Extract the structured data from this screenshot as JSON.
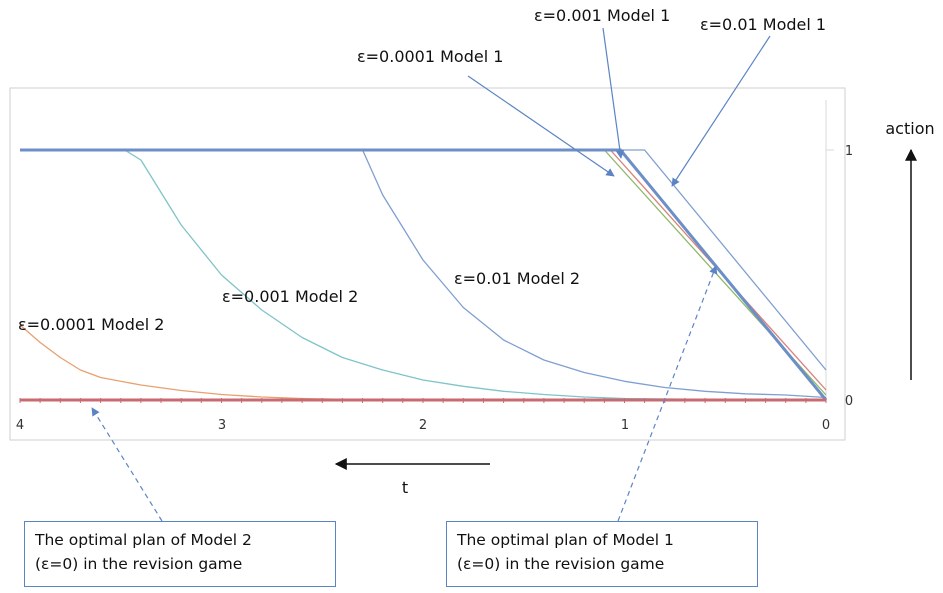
{
  "chart_data": {
    "type": "line",
    "x_axis": {
      "label": "t",
      "ticks": [
        "4",
        "3",
        "2",
        "1",
        "0"
      ],
      "range": [
        0,
        4
      ],
      "reversed": true
    },
    "y_axis": {
      "label": "action",
      "ticks": [
        "0",
        "1"
      ],
      "range": [
        0,
        1
      ]
    },
    "grid": false,
    "series": [
      {
        "name": "ε=0.0001 Model 1",
        "color": "#8fb86a",
        "points": [
          [
            4,
            1
          ],
          [
            1.1,
            1
          ],
          [
            0,
            0.02
          ]
        ]
      },
      {
        "name": "ε=0.001 Model 1",
        "color": "#d9827a",
        "points": [
          [
            4,
            1
          ],
          [
            1.07,
            1
          ],
          [
            0,
            0.04
          ]
        ]
      },
      {
        "name": "ε=0.01 Model 1",
        "color": "#7f9fd1",
        "points": [
          [
            4,
            1
          ],
          [
            0.9,
            1
          ],
          [
            0,
            0.12
          ]
        ]
      },
      {
        "name": "ε=0.01 Model 2",
        "color": "#7f9fd1",
        "points": [
          [
            4,
            1
          ],
          [
            2.3,
            1
          ],
          [
            2.2,
            0.82
          ],
          [
            2.0,
            0.56
          ],
          [
            1.8,
            0.37
          ],
          [
            1.6,
            0.24
          ],
          [
            1.4,
            0.16
          ],
          [
            1.2,
            0.11
          ],
          [
            1.0,
            0.075
          ],
          [
            0.8,
            0.05
          ],
          [
            0.6,
            0.035
          ],
          [
            0.4,
            0.025
          ],
          [
            0.2,
            0.02
          ],
          [
            0,
            0.01
          ]
        ]
      },
      {
        "name": "ε=0.001 Model 2",
        "color": "#7fc4c8",
        "points": [
          [
            4,
            1
          ],
          [
            3.48,
            1
          ],
          [
            3.4,
            0.96
          ],
          [
            3.2,
            0.7
          ],
          [
            3.0,
            0.5
          ],
          [
            2.8,
            0.36
          ],
          [
            2.6,
            0.25
          ],
          [
            2.4,
            0.17
          ],
          [
            2.2,
            0.12
          ],
          [
            2.0,
            0.08
          ],
          [
            1.8,
            0.055
          ],
          [
            1.6,
            0.035
          ],
          [
            1.4,
            0.022
          ],
          [
            1.2,
            0.012
          ],
          [
            1.0,
            0.006
          ],
          [
            0.5,
            0.002
          ],
          [
            0,
            0
          ]
        ]
      },
      {
        "name": "ε=0.0001 Model 2",
        "color": "#e8a070",
        "points": [
          [
            4,
            0.3
          ],
          [
            3.9,
            0.23
          ],
          [
            3.8,
            0.17
          ],
          [
            3.7,
            0.12
          ],
          [
            3.6,
            0.09
          ],
          [
            3.4,
            0.06
          ],
          [
            3.2,
            0.038
          ],
          [
            3.0,
            0.022
          ],
          [
            2.8,
            0.012
          ],
          [
            2.6,
            0.006
          ],
          [
            2.4,
            0.003
          ],
          [
            2.2,
            0.001
          ],
          [
            2.0,
            0
          ],
          [
            0,
            0
          ]
        ]
      },
      {
        "name": "The optimal plan of Model 1 (ε=0) in the revision game",
        "color": "#6d8fc7",
        "thick": true,
        "points": [
          [
            4,
            1
          ],
          [
            1.02,
            1
          ],
          [
            0,
            0
          ]
        ]
      },
      {
        "name": "The optimal plan of Model 2 (ε=0) in the revision game",
        "color": "#c96a70",
        "thick": true,
        "points": [
          [
            4,
            0
          ],
          [
            0,
            0
          ]
        ]
      }
    ],
    "annotations": [
      {
        "text": "ε=0.001 Model 1",
        "target_series": "ε=0.001 Model 1"
      },
      {
        "text": "ε=0.01 Model 1",
        "target_series": "ε=0.01 Model 1"
      },
      {
        "text": "ε=0.0001 Model 1",
        "target_series": "ε=0.0001 Model 1"
      },
      {
        "text": "ε=0.01 Model 2"
      },
      {
        "text": "ε=0.001 Model 2"
      },
      {
        "text": "ε=0.0001 Model 2"
      }
    ],
    "callouts": [
      {
        "line1": "The optimal plan of Model 2",
        "line2": "(ε=0) in the revision game"
      },
      {
        "line1": "The optimal plan of Model 1",
        "line2": "(ε=0) in the revision game"
      }
    ]
  }
}
